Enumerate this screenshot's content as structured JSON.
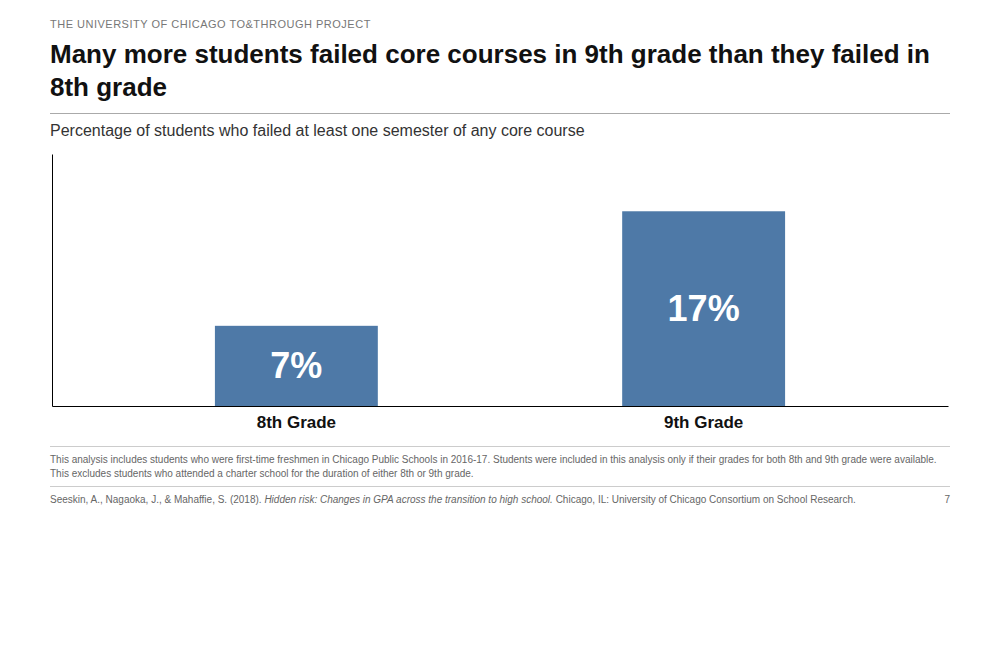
{
  "chart_data": {
    "type": "bar",
    "title": "Many more students failed core courses in 9th grade than they failed in 8th grade",
    "subtitle": "Percentage of students who failed at least one semester of any core course",
    "categories": [
      "8th Grade",
      "9th Grade"
    ],
    "values": [
      7,
      17
    ],
    "value_labels": [
      "7%",
      "17%"
    ],
    "data_labels": true,
    "ylim": [
      0,
      22
    ],
    "yticks": [],
    "tick_labels": "x",
    "grid": false,
    "annotations": [
      "THE UNIVERSITY OF CHICAGO TO&THROUGH PROJECT",
      "This analysis includes students who were first-time freshmen in Chicago Public Schools in 2016-17. Students were included in this analysis only if their grades for both 8th and 9th grade were available. This excludes students who attended a charter school for the duration of either 8th or 9th grade.",
      "Seeskin, A., Nagaoka, J., & Mahaffie, S. (2018). ",
      "Hidden risk: Changes in GPA across the transition to high school.",
      " Chicago, IL: University of Chicago Consortium on School Research.",
      "7"
    ]
  }
}
